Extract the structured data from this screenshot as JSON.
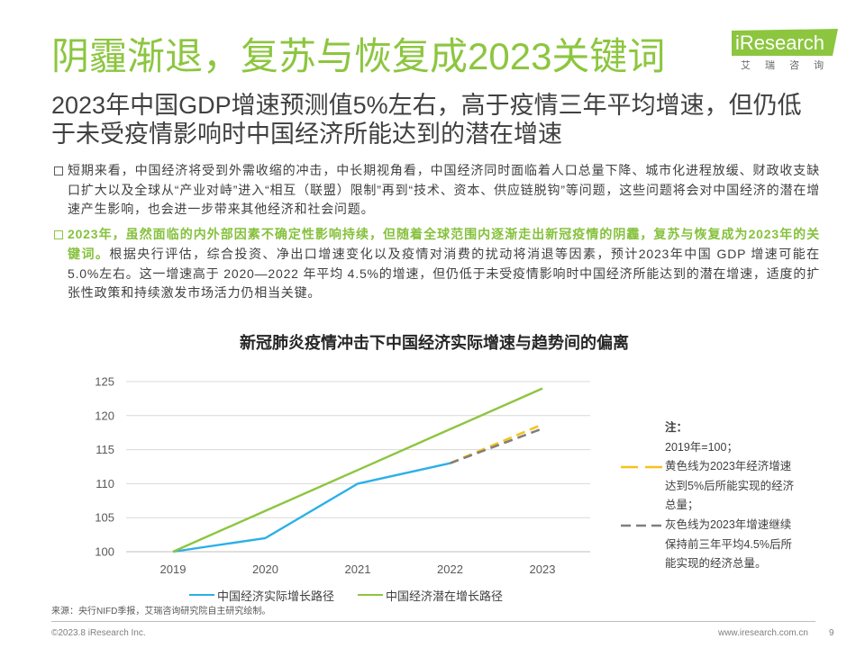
{
  "header": {
    "title": "阴霾渐退，复苏与恢复成2023关键词",
    "subtitle": "2023年中国GDP增速预测值5%左右，高于疫情三年平均增速，但仍低于未受疫情影响时中国经济所能达到的潜在增速"
  },
  "logo": {
    "brand": "iResearch",
    "cn": "艾 瑞 咨 询"
  },
  "bullets": [
    {
      "text": "短期来看，中国经济将受到外需收缩的冲击，中长期视角看，中国经济同时面临着人口总量下降、城市化进程放缓、财政收支缺口扩大以及全球从“产业对峙”进入“相互（联盟）限制”再到“技术、资本、供应链脱钩”等问题，这些问题将会对中国经济的潜在增速产生影响，也会进一步带来其他经济和社会问题。"
    },
    {
      "highlight": "2023年，虽然面临的内外部因素不确定性影响持续，但随着全球范围内逐渐走出新冠疫情的阴霾，复苏与恢复成为2023年的关键词。",
      "text": "根据央行评估，综合投资、净出口增速变化以及疫情对消费的扰动将消退等因素，预计2023年中国 GDP 增速可能在5.0%左右。这一增速高于 2020—2022 年平均 4.5%的增速，但仍低于未受疫情影响时中国经济所能达到的潜在增速，适度的扩张性政策和持续激发市场活力仍相当关键。"
    }
  ],
  "chart_data": {
    "type": "line",
    "title": "新冠肺炎疫情冲击下中国经济实际增速与趋势间的偏离",
    "x": [
      "2019",
      "2020",
      "2021",
      "2022",
      "2023"
    ],
    "yticks": [
      100,
      105,
      110,
      115,
      120,
      125
    ],
    "ylim": [
      100,
      125
    ],
    "grid": true,
    "legend_position": "bottom",
    "series": [
      {
        "name": "中国经济实际增长路径",
        "values": [
          100,
          102,
          110,
          113,
          null
        ],
        "color": "#2ab0e8",
        "dashed": false
      },
      {
        "name": "中国经济潜在增长路径",
        "values": [
          100,
          106,
          112,
          118,
          124
        ],
        "color": "#8cc63f",
        "dashed": false
      },
      {
        "values": [
          null,
          null,
          null,
          113,
          118.7
        ],
        "color": "#f7c21b",
        "dashed": true
      },
      {
        "values": [
          null,
          null,
          null,
          113,
          118.1
        ],
        "color": "#7f7f7f",
        "dashed": true
      }
    ],
    "note": {
      "heading": "注：",
      "base": "2019年=100；",
      "items": [
        {
          "text": "黄色线为2023年经济增速达到5%后所能实现的经济总量；"
        },
        {
          "text": "灰色线为2023年增速继续保持前三年平均4.5%后所能实现的经济总量。"
        }
      ]
    }
  },
  "source": "来源：央行NIFD季报，艾瑞咨询研究院自主研究绘制。",
  "footer": {
    "copyright": "©2023.8 iResearch Inc.",
    "website": "www.iresearch.com.cn",
    "page": "9"
  }
}
